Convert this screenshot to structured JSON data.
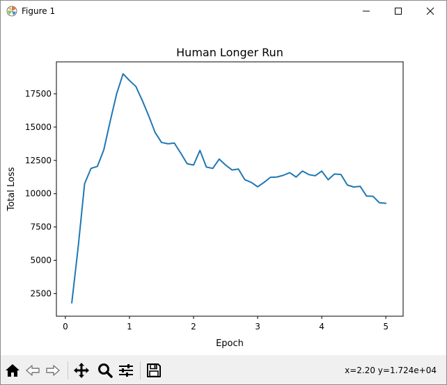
{
  "window": {
    "title": "Figure 1"
  },
  "toolbar": {
    "buttons": [
      {
        "name": "home",
        "icon": "home-icon"
      },
      {
        "name": "back",
        "icon": "arrow-left-icon"
      },
      {
        "name": "forward",
        "icon": "arrow-right-icon"
      },
      {
        "name": "pan",
        "icon": "move-icon"
      },
      {
        "name": "zoom",
        "icon": "magnifier-icon"
      },
      {
        "name": "configure-subplots",
        "icon": "sliders-icon"
      },
      {
        "name": "save",
        "icon": "floppy-disk-icon"
      }
    ],
    "coordinates": "x=2.20 y=1.724e+04"
  },
  "chart_data": {
    "type": "line",
    "title": "Human Longer Run",
    "xlabel": "Epoch",
    "ylabel": "Total Loss",
    "xlim": [
      -0.14,
      5.27
    ],
    "ylim": [
      800,
      19900
    ],
    "xticks": [
      0,
      1,
      2,
      3,
      4,
      5
    ],
    "yticks": [
      2500,
      5000,
      7500,
      10000,
      12500,
      15000,
      17500
    ],
    "grid": false,
    "line_color": "#1f77b4",
    "series": [
      {
        "x": [
          0.1,
          0.2,
          0.3,
          0.4,
          0.5,
          0.6,
          0.7,
          0.8,
          0.9,
          1.0,
          1.1,
          1.2,
          1.3,
          1.4,
          1.5,
          1.6,
          1.7,
          1.8,
          1.9,
          2.0,
          2.1,
          2.2,
          2.3,
          2.4,
          2.5,
          2.6,
          2.7,
          2.8,
          2.9,
          3.0,
          3.1,
          3.2,
          3.3,
          3.4,
          3.5,
          3.6,
          3.7,
          3.8,
          3.9,
          4.0,
          4.1,
          4.2,
          4.3,
          4.4,
          4.5,
          4.6,
          4.7,
          4.8,
          4.9,
          5.0
        ],
        "values": [
          1800,
          6000,
          10750,
          11900,
          12050,
          13300,
          15450,
          17500,
          19000,
          18500,
          18050,
          17000,
          15850,
          14600,
          13850,
          13750,
          13800,
          13050,
          12250,
          12150,
          13250,
          12000,
          11900,
          12600,
          12150,
          11780,
          11850,
          11050,
          10850,
          10520,
          10850,
          11230,
          11250,
          11380,
          11580,
          11250,
          11700,
          11430,
          11350,
          11700,
          11050,
          11480,
          11440,
          10650,
          10500,
          10550,
          9820,
          9800,
          9320,
          9280
        ]
      }
    ]
  }
}
